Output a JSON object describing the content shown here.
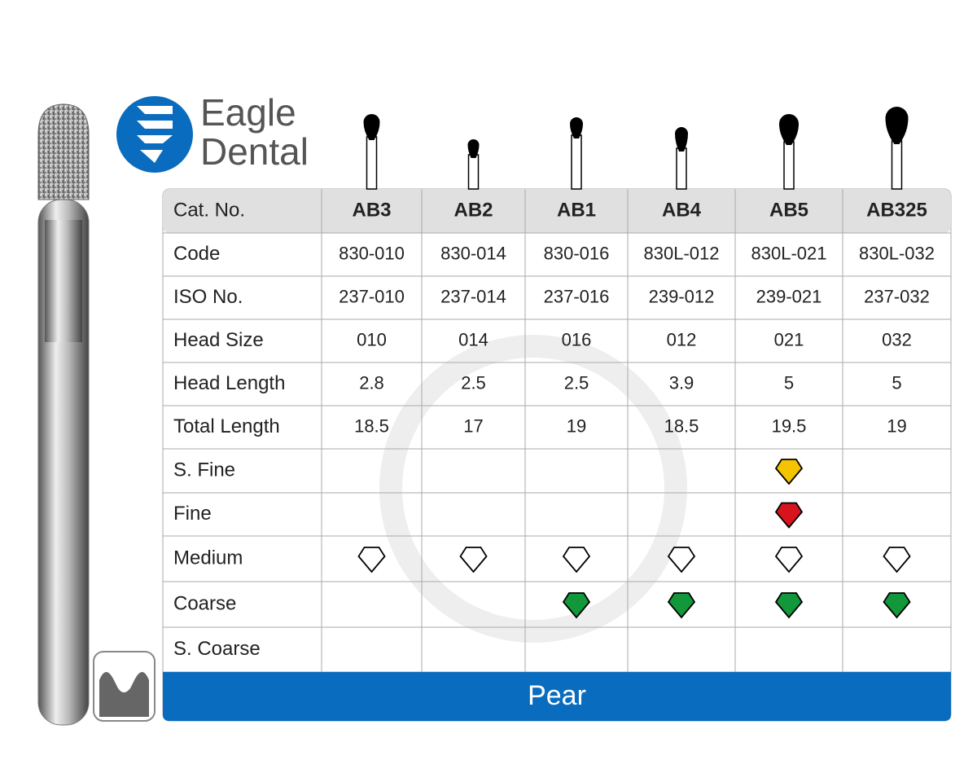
{
  "brand": {
    "line1": "Eagle",
    "line2": "Dental"
  },
  "table": {
    "header": [
      "Cat. No.",
      "AB3",
      "AB2",
      "AB1",
      "AB4",
      "AB5",
      "AB325"
    ],
    "rows": [
      [
        "Code",
        "830-010",
        "830-014",
        "830-016",
        "830L-012",
        "830L-021",
        "830L-032"
      ],
      [
        "ISO No.",
        "237-010",
        "237-014",
        "237-016",
        "239-012",
        "239-021",
        "237-032"
      ],
      [
        "Head Size",
        "010",
        "014",
        "016",
        "012",
        "021",
        "032"
      ],
      [
        "Head Length",
        "2.8",
        "2.5",
        "2.5",
        "3.9",
        "5",
        "5"
      ],
      [
        "Total Length",
        "18.5",
        "17",
        "19",
        "18.5",
        "19.5",
        "19"
      ]
    ],
    "grit_rows": [
      {
        "label": "S. Fine",
        "marks": [
          null,
          null,
          null,
          null,
          "#f5c400",
          null
        ]
      },
      {
        "label": "Fine",
        "marks": [
          null,
          null,
          null,
          null,
          "#d7141e",
          null
        ]
      },
      {
        "label": "Medium",
        "marks": [
          "#ffffff",
          "#ffffff",
          "#ffffff",
          "#ffffff",
          "#ffffff",
          "#ffffff"
        ]
      },
      {
        "label": "Coarse",
        "marks": [
          null,
          null,
          "#12983a",
          "#12983a",
          "#12983a",
          "#12983a"
        ]
      },
      {
        "label": "S. Coarse",
        "marks": [
          null,
          null,
          null,
          null,
          null,
          null
        ]
      }
    ],
    "footer": "Pear"
  }
}
